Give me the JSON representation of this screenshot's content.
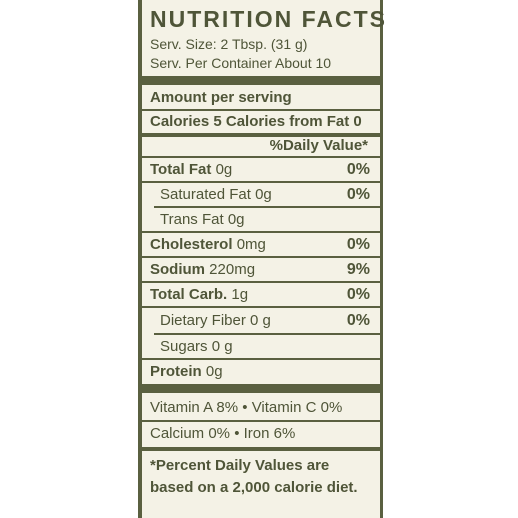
{
  "title": "NUTRITION FACTS",
  "serving_size": "Serv. Size: 2 Tbsp. (31 g)",
  "servings_per_container": "Serv. Per Container About 10",
  "amount_per_serving": "Amount per serving",
  "calories_line": "Calories 5 Calories from Fat 0",
  "daily_value_header": "%Daily Value*",
  "nutrients": {
    "total_fat": {
      "name": "Total Fat",
      "amount": "0g",
      "dv": "0%"
    },
    "saturated_fat": {
      "name": "Saturated Fat",
      "amount": "0g",
      "dv": "0%"
    },
    "trans_fat": {
      "name": "Trans Fat",
      "amount": "0g"
    },
    "cholesterol": {
      "name": "Cholesterol",
      "amount": "0mg",
      "dv": "0%"
    },
    "sodium": {
      "name": "Sodium",
      "amount": "220mg",
      "dv": "9%"
    },
    "total_carb": {
      "name": "Total Carb.",
      "amount": "1g",
      "dv": "0%"
    },
    "dietary_fiber": {
      "name": "Dietary Fiber",
      "amount": "0 g",
      "dv": "0%"
    },
    "sugars": {
      "name": "Sugars",
      "amount": "0 g"
    },
    "protein": {
      "name": "Protein",
      "amount": "0g"
    }
  },
  "vitamins": {
    "row1": "Vitamin A 8% • Vitamin C 0%",
    "row2": "Calcium 0% • Iron 6%"
  },
  "footnote": {
    "line1": "*Percent Daily Values are",
    "line2": "based on a 2,000 calorie diet."
  }
}
